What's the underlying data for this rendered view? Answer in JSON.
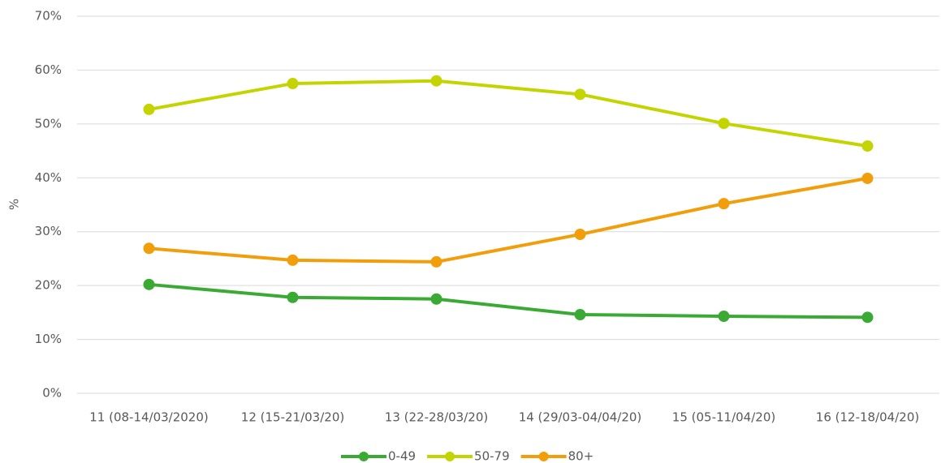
{
  "chart_data": {
    "type": "line",
    "y_label": "%",
    "categories": [
      "11 (08-14/03/2020)",
      "12 (15-21/03/20)",
      "13 (22-28/03/20)",
      "14 (29/03-04/04/20)",
      "15 (05-11/04/20)",
      "16 (12-18/04/20)"
    ],
    "series": [
      {
        "name": "0-49",
        "color": "#3aaa35",
        "values": [
          20.2,
          17.8,
          17.5,
          14.6,
          14.3,
          14.1
        ]
      },
      {
        "name": "50-79",
        "color": "#c3d400",
        "values": [
          52.7,
          57.5,
          58.0,
          55.5,
          50.1,
          45.9
        ]
      },
      {
        "name": "80+",
        "color": "#f29d0a",
        "values": [
          26.9,
          24.7,
          24.4,
          29.5,
          35.2,
          39.9
        ]
      }
    ],
    "ylim": [
      0,
      70
    ],
    "yticks": [
      {
        "value": 0,
        "label": "0%"
      },
      {
        "value": 10,
        "label": "10%"
      },
      {
        "value": 20,
        "label": "20%"
      },
      {
        "value": 30,
        "label": "30%"
      },
      {
        "value": 40,
        "label": "40%"
      },
      {
        "value": 50,
        "label": "50%"
      },
      {
        "value": 60,
        "label": "60%"
      },
      {
        "value": 70,
        "label": "70%"
      }
    ],
    "grid": true
  }
}
